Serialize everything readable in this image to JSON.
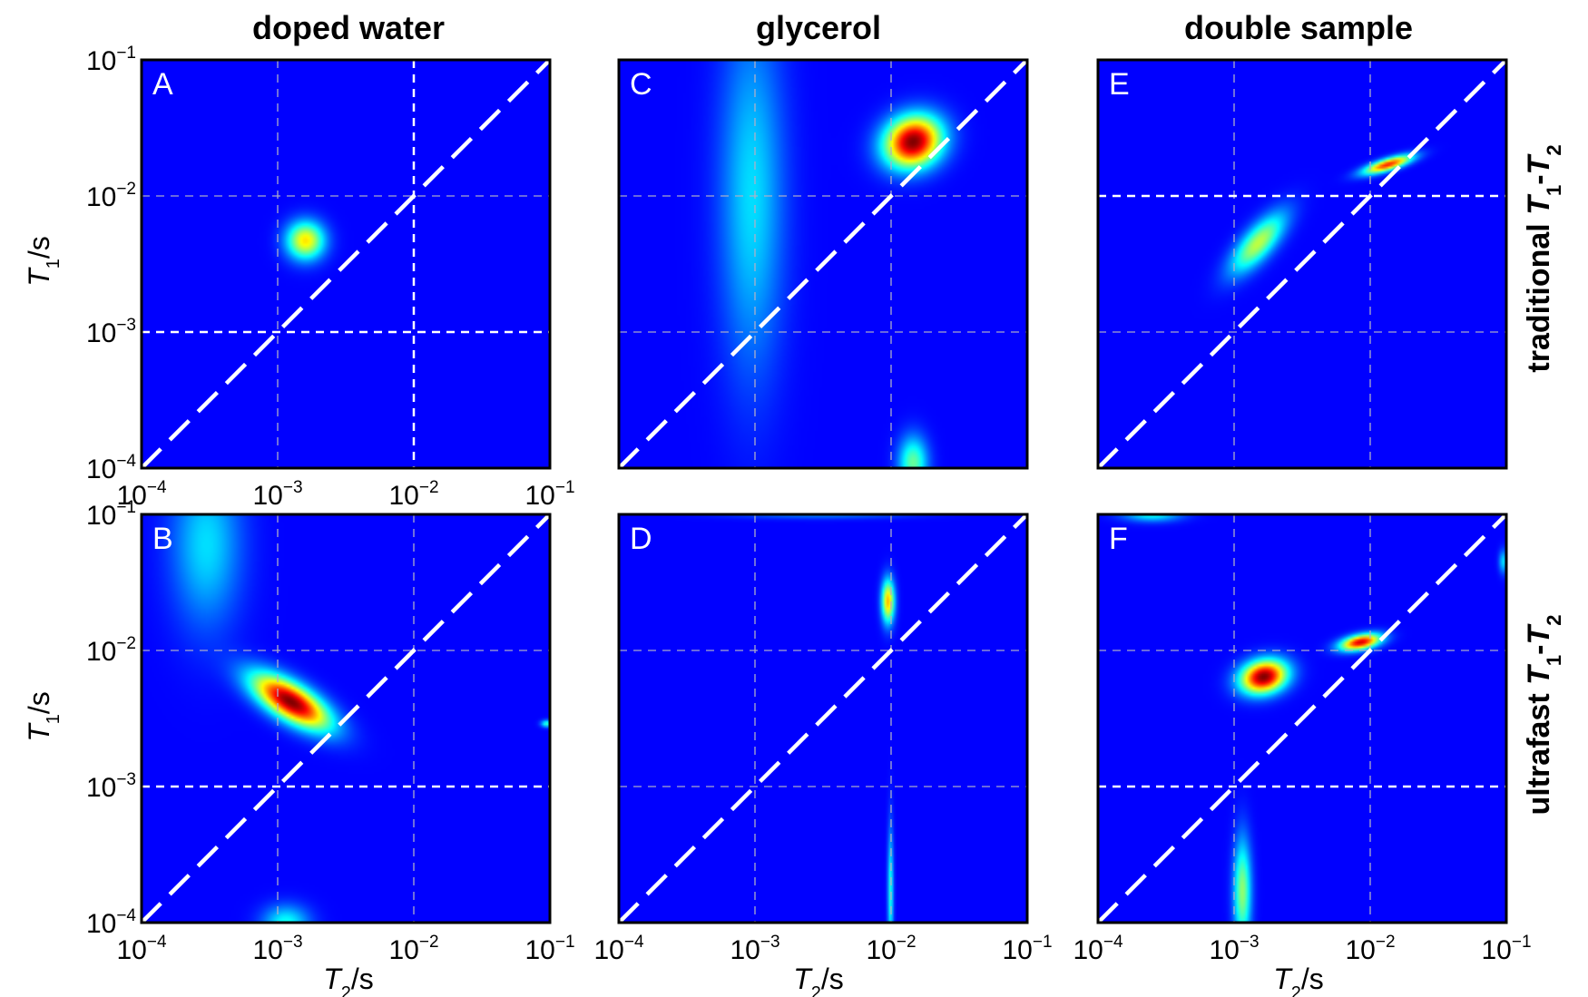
{
  "figure": {
    "column_titles": [
      "doped water",
      "glycerol",
      "double sample"
    ],
    "row_titles": [
      {
        "prefix": "traditional ",
        "sym1": "T",
        "sub1": "1",
        "dash": "-",
        "sym2": "T",
        "sub2": "2"
      },
      {
        "prefix": "ultrafast ",
        "sym1": "T",
        "sub1": "1",
        "dash": "-",
        "sym2": "T",
        "sub2": "2"
      }
    ],
    "xlabel": {
      "sym": "T",
      "sub": "2",
      "unit": "/s"
    },
    "ylabel": {
      "sym": "T",
      "sub": "1",
      "unit": "/s"
    },
    "tick_base": "10",
    "colors": {
      "background": "#00008f",
      "grid": "#b0b0c8",
      "diagonal": "#ffffff",
      "frame": "#000000"
    }
  },
  "chart_data": [
    {
      "panel": "A",
      "type": "heatmap",
      "row": 0,
      "col": 0,
      "x_scale": "log",
      "y_scale": "log",
      "xlim": [
        0.0001,
        0.1
      ],
      "ylim": [
        0.0001,
        0.1
      ],
      "xticks": [
        "-4",
        "-3",
        "-2",
        "-1"
      ],
      "yticks": [
        "-1",
        "-2",
        "-3",
        "-4"
      ],
      "x_grid_styles": [
        "light",
        "white"
      ],
      "y_grid_styles": [
        "white",
        "light"
      ],
      "peaks": [
        {
          "t2": 0.0016,
          "t1": 0.0047,
          "amp": 0.6,
          "wx": 0.065,
          "wy": 0.065,
          "tilt": 0
        }
      ]
    },
    {
      "panel": "C",
      "type": "heatmap",
      "row": 0,
      "col": 1,
      "x_scale": "log",
      "y_scale": "log",
      "xlim": [
        0.0001,
        0.1
      ],
      "ylim": [
        0.0001,
        0.1
      ],
      "xticks": [],
      "yticks": [],
      "x_grid_styles": [
        "light",
        "light"
      ],
      "y_grid_styles": [
        "light",
        "light"
      ],
      "peaks": [
        {
          "t2": 0.00095,
          "t1": 0.01,
          "amp": 0.25,
          "wx": 0.11,
          "wy": 0.6,
          "tilt": 0
        },
        {
          "t2": 0.0145,
          "t1": 0.025,
          "amp": 1.0,
          "wx": 0.1,
          "wy": 0.085,
          "tilt": 0.45
        },
        {
          "t2": 0.0145,
          "t1": 0.00011,
          "amp": 0.4,
          "wx": 0.05,
          "wy": 0.09,
          "tilt": 0
        }
      ]
    },
    {
      "panel": "E",
      "type": "heatmap",
      "row": 0,
      "col": 2,
      "x_scale": "log",
      "y_scale": "log",
      "xlim": [
        0.0001,
        0.1
      ],
      "ylim": [
        0.0001,
        0.1
      ],
      "xticks": [],
      "yticks": [],
      "x_grid_styles": [
        "light",
        "light"
      ],
      "y_grid_styles": [
        "light",
        "white"
      ],
      "peaks": [
        {
          "t2": 0.0015,
          "t1": 0.0045,
          "amp": 0.5,
          "wx": 0.13,
          "wy": 0.05,
          "tilt": 0.85
        },
        {
          "t2": 0.0135,
          "t1": 0.017,
          "amp": 0.82,
          "wx": 0.085,
          "wy": 0.02,
          "tilt": 0.3
        }
      ]
    },
    {
      "panel": "B",
      "type": "heatmap",
      "row": 1,
      "col": 0,
      "x_scale": "log",
      "y_scale": "log",
      "xlim": [
        0.0001,
        0.1
      ],
      "ylim": [
        0.0001,
        0.1
      ],
      "xticks": [
        "-4",
        "-3",
        "-2",
        "-1"
      ],
      "yticks": [
        "-1",
        "-2",
        "-3",
        "-4"
      ],
      "x_grid_styles": [
        "light",
        "light"
      ],
      "y_grid_styles": [
        "white",
        "light"
      ],
      "peaks": [
        {
          "t2": 0.0003,
          "t1": 0.06,
          "amp": 0.25,
          "wx": 0.12,
          "wy": 0.28,
          "tilt": 0
        },
        {
          "t2": 0.00125,
          "t1": 0.0042,
          "amp": 1.0,
          "wx": 0.15,
          "wy": 0.06,
          "tilt": -0.55
        },
        {
          "t2": 0.00115,
          "t1": 0.0001,
          "amp": 0.3,
          "wx": 0.08,
          "wy": 0.06,
          "tilt": 0
        },
        {
          "t2": 0.095,
          "t1": 0.0029,
          "amp": 0.35,
          "wx": 0.02,
          "wy": 0.012,
          "tilt": 0
        }
      ]
    },
    {
      "panel": "D",
      "type": "heatmap",
      "row": 1,
      "col": 1,
      "x_scale": "log",
      "y_scale": "log",
      "xlim": [
        0.0001,
        0.1
      ],
      "ylim": [
        0.0001,
        0.1
      ],
      "xticks": [
        "-4",
        "-3",
        "-2",
        "-1"
      ],
      "yticks": [],
      "x_grid_styles": [
        "light",
        "light"
      ],
      "y_grid_styles": [
        "light",
        "light"
      ],
      "peaks": [
        {
          "t2": 0.0095,
          "t1": 0.023,
          "amp": 0.65,
          "wx": 0.022,
          "wy": 0.075,
          "tilt": 0
        },
        {
          "t2": 0.0099,
          "t1": 0.00017,
          "amp": 0.32,
          "wx": 0.01,
          "wy": 0.22,
          "tilt": 0
        },
        {
          "t2": 0.003,
          "t1": 0.1,
          "amp": 0.15,
          "wx": 0.3,
          "wy": 0.015,
          "tilt": 0
        }
      ]
    },
    {
      "panel": "F",
      "type": "heatmap",
      "row": 1,
      "col": 2,
      "x_scale": "log",
      "y_scale": "log",
      "xlim": [
        0.0001,
        0.1
      ],
      "ylim": [
        0.0001,
        0.1
      ],
      "xticks": [
        "-4",
        "-3",
        "-2",
        "-1"
      ],
      "yticks": [],
      "x_grid_styles": [
        "light",
        "light"
      ],
      "y_grid_styles": [
        "white",
        "light"
      ],
      "peaks": [
        {
          "t2": 0.00165,
          "t1": 0.0064,
          "amp": 1.0,
          "wx": 0.08,
          "wy": 0.055,
          "tilt": 0.25
        },
        {
          "t2": 0.0085,
          "t1": 0.0115,
          "amp": 0.9,
          "wx": 0.07,
          "wy": 0.025,
          "tilt": 0.2
        },
        {
          "t2": 0.00115,
          "t1": 0.00017,
          "amp": 0.45,
          "wx": 0.03,
          "wy": 0.18,
          "tilt": 0
        },
        {
          "t2": 0.00025,
          "t1": 0.1,
          "amp": 0.3,
          "wx": 0.1,
          "wy": 0.025,
          "tilt": 0
        },
        {
          "t2": 0.095,
          "t1": 0.045,
          "amp": 0.25,
          "wx": 0.015,
          "wy": 0.04,
          "tilt": 0
        }
      ]
    }
  ]
}
